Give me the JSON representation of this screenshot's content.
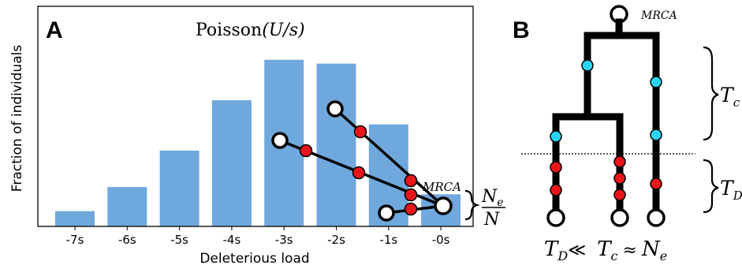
{
  "panel_a": {
    "letter": "A",
    "title_prefix": "Poisson",
    "title_param": "(U/s)",
    "ylabel": "Fraction of individuals",
    "xlabel": "Deleterious load",
    "mrca_label": "MRCA",
    "ratio_num_letter": "N",
    "ratio_num_sub": "e",
    "ratio_den": "N"
  },
  "chart_data": {
    "type": "bar",
    "categories": [
      "-7s",
      "-6s",
      "-5s",
      "-4s",
      "-3s",
      "-2s",
      "-1s",
      "-0s"
    ],
    "values": [
      0.088,
      0.227,
      0.437,
      0.727,
      0.96,
      0.938,
      0.588,
      0.185
    ],
    "xlabel": "Deleterious load",
    "ylabel": "Fraction of individuals",
    "grid": false,
    "color": "#6fa8dc"
  },
  "panel_b": {
    "letter": "B",
    "mrca_label": "MRCA",
    "tc_label": "T",
    "tc_sub": "c",
    "td_label": "T",
    "td_sub": "D",
    "rel_td": "T",
    "rel_td_sub": "D",
    "rel_op1": "≪",
    "rel_tc": "T",
    "rel_tc_sub": "c",
    "rel_op2": "≈",
    "rel_ne": "N",
    "rel_ne_sub": "e"
  },
  "colors": {
    "bar": "#6fa8dc",
    "mutation_red": "#e8151b",
    "mutation_cyan": "#2ad3f0"
  }
}
